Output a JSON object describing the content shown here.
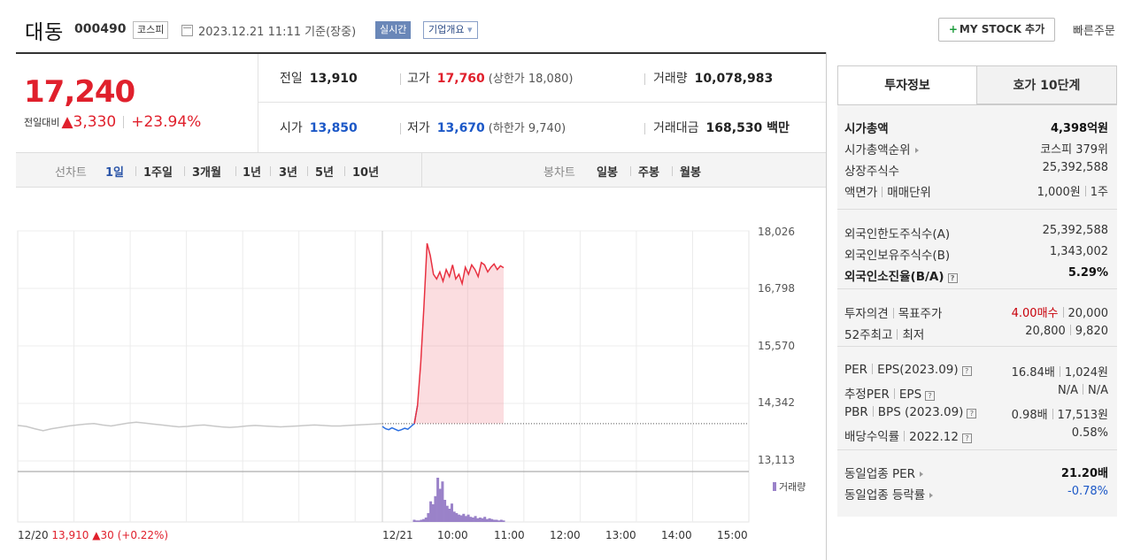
{
  "header": {
    "stock_name": "대동",
    "stock_code": "000490",
    "market": "코스피",
    "datetime": "2023.12.21 11:11 기준(장중)",
    "realtime_label": "실시간",
    "company_label": "기업개요",
    "mystock_label": "MY STOCK 추가",
    "quick_order_label": "빠른주문"
  },
  "price": {
    "current": "17,240",
    "change_label": "전일대비",
    "change": "▲3,330",
    "change_rate": "+23.94%"
  },
  "stats": {
    "prev_close_label": "전일",
    "prev_close": "13,910",
    "high_label": "고가",
    "high": "17,760",
    "upper_limit": "(상한가 18,080)",
    "volume_label": "거래량",
    "volume": "10,078,983",
    "open_label": "시가",
    "open": "13,850",
    "low_label": "저가",
    "low": "13,670",
    "lower_limit": "(하한가 9,740)",
    "amount_label": "거래대금",
    "amount": "168,530 백만"
  },
  "toolbar": {
    "line_chart_label": "선차트",
    "periods": [
      "1일",
      "1주일",
      "3개월",
      "1년",
      "3년",
      "5년",
      "10년"
    ],
    "active_period": "1일",
    "candle_label": "봉차트",
    "candles": [
      "일봉",
      "주봉",
      "월봉"
    ]
  },
  "chart_data": {
    "type": "line",
    "y_ticks": [
      "18,026",
      "16,798",
      "15,570",
      "14,342",
      "13,113"
    ],
    "ylim": [
      13113,
      18026
    ],
    "x_ticks": [
      "12/21",
      "10:00",
      "11:00",
      "12:00",
      "13:00",
      "14:00",
      "15:00"
    ],
    "prev_close": 13910,
    "prev_day_info": {
      "date": "12/20",
      "close": "13,910",
      "change": "▲30",
      "rate": "(+0.22%)"
    },
    "volume_label": "거래량",
    "series": [
      {
        "values_prev_day": [
          13870,
          13850,
          13800,
          13760,
          13800,
          13830,
          13860,
          13880,
          13900,
          13910,
          13880,
          13860,
          13890,
          13920,
          13940,
          13920,
          13900,
          13880,
          13860,
          13840,
          13850,
          13870,
          13880,
          13860,
          13840,
          13830,
          13840,
          13860,
          13870,
          13860,
          13850,
          13840,
          13850,
          13860,
          13870,
          13880,
          13870,
          13860,
          13860,
          13870,
          13880,
          13890,
          13900,
          13910
        ],
        "values_today": [
          13850,
          13800,
          13780,
          13820,
          13790,
          13760,
          13780,
          13810,
          13790,
          13850,
          13910,
          14300,
          15200,
          16400,
          17760,
          17500,
          17100,
          17000,
          17150,
          16950,
          17200,
          17050,
          17300,
          17000,
          17100,
          16900,
          17250,
          17100,
          17300,
          17200,
          17050,
          17350,
          17300,
          17150,
          17250,
          17320,
          17200,
          17280,
          17240
        ],
        "volume_today": [
          3,
          2,
          2,
          3,
          4,
          6,
          12,
          28,
          24,
          35,
          60,
          45,
          55,
          30,
          22,
          18,
          25,
          14,
          12,
          10,
          9,
          11,
          8,
          10,
          7,
          6,
          8,
          5,
          6,
          5,
          7,
          4,
          5,
          4,
          3,
          3,
          2,
          3,
          2
        ]
      }
    ]
  },
  "right_panel": {
    "tabs": [
      "투자정보",
      "호가 10단계"
    ],
    "group1": [
      {
        "k": "시가총액",
        "v": "4,398억원"
      },
      {
        "k": "시가총액순위",
        "v": "코스피 379위"
      },
      {
        "k": "상장주식수",
        "v": "25,392,588"
      },
      {
        "k1": "액면가",
        "k2": "매매단위",
        "v1": "1,000원",
        "v2": "1주"
      }
    ],
    "group2": [
      {
        "k": "외국인한도주식수(A)",
        "v": "25,392,588"
      },
      {
        "k": "외국인보유주식수(B)",
        "v": "1,343,002"
      },
      {
        "k": "외국인소진율(B/A)",
        "v": "5.29%"
      }
    ],
    "group3": [
      {
        "k1": "투자의견",
        "k2": "목표주가",
        "v1": "4.00매수",
        "v2": "20,000"
      },
      {
        "k1": "52주최고",
        "k2": "최저",
        "v1": "20,800",
        "v2": "9,820"
      }
    ],
    "group4": [
      {
        "k1": "PER",
        "k2": "EPS(2023.09)",
        "v1": "16.84배",
        "v2": "1,024원"
      },
      {
        "k1": "추정PER",
        "k2": "EPS",
        "v1": "N/A",
        "v2": "N/A"
      },
      {
        "k1": "PBR",
        "k2": "BPS (2023.09)",
        "v1": "0.98배",
        "v2": "17,513원"
      },
      {
        "k1": "배당수익률",
        "k2": "2022.12",
        "v1": "0.58%"
      }
    ],
    "group5": [
      {
        "k": "동일업종 PER",
        "v": "21.20배"
      },
      {
        "k": "동일업종 등락률",
        "v": "-0.78%"
      }
    ],
    "q_mark": "?"
  }
}
